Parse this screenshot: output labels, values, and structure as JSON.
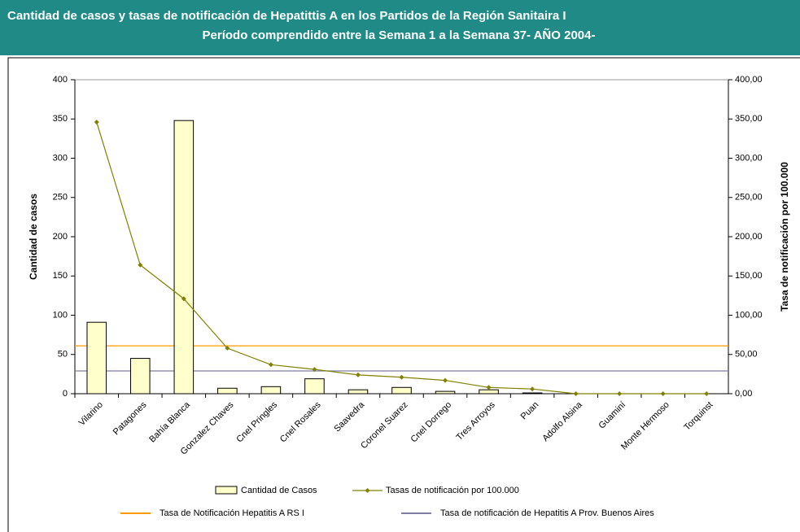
{
  "chart_data": {
    "type": "bar_line",
    "title": [
      "Cantidad de casos y tasas de notificación de Hepatittis A en los Partidos de la Región Sanitaira I",
      "Período comprendido entre la Semana 1 a la Semana 37- AÑO 2004-"
    ],
    "ylabel": "Cantidad de casos",
    "y2label": "Tasa de notificación por 100.000",
    "categories": [
      "Vilarino",
      "Patagones",
      "Bahía Blanca",
      "Gonzalez Chaves",
      "Cnel Pringles",
      "Cnel Rosales",
      "Saavedra",
      "Coronel Suarez",
      "Cnel Dorrego",
      "Tres Arroyos",
      "Puan",
      "Adolfo Alsina",
      "Guaminí",
      "Monte Hermoso",
      "Torquinst"
    ],
    "series": [
      {
        "name": "Cantidad de Casos",
        "type": "bar",
        "color": "#ffffcc",
        "values": [
          91,
          45,
          348,
          7,
          9,
          19,
          5,
          8,
          3,
          5,
          1,
          0,
          0,
          0,
          0
        ]
      },
      {
        "name": "Tasas de notificación por 100.000",
        "type": "line",
        "axis": "y2",
        "color": "#808000",
        "values": [
          346,
          164,
          121,
          58,
          37,
          31,
          24,
          21,
          17,
          8,
          6,
          0,
          0,
          0,
          0
        ]
      }
    ],
    "reference_lines": [
      {
        "name": "Tasa de Notificación Hepatitis A RS I",
        "color": "#ff9900",
        "axis": "y2",
        "value": 61
      },
      {
        "name": "Tasa de notificación de Hepatitis  A Prov. Buenos Aires",
        "color": "#7f7fa6",
        "axis": "y2",
        "value": 29
      }
    ],
    "ylim": [
      0,
      400
    ],
    "yticks": [
      0,
      50,
      100,
      150,
      200,
      250,
      300,
      350,
      400
    ],
    "y2lim": [
      0,
      400
    ],
    "y2ticks": [
      {
        "value": 0,
        "label": "0,00"
      },
      {
        "value": 50,
        "label": "50,00"
      },
      {
        "value": 100,
        "label": "100,00"
      },
      {
        "value": 150,
        "label": "150,00"
      },
      {
        "value": 200,
        "label": "200,00"
      },
      {
        "value": 250,
        "label": "250,00"
      },
      {
        "value": 300,
        "label": "300,00"
      },
      {
        "value": 350,
        "label": "350,00"
      },
      {
        "value": 400,
        "label": "400,00"
      }
    ]
  }
}
